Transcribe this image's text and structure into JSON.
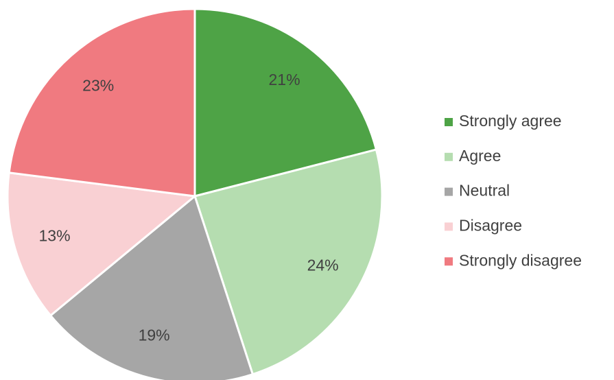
{
  "chart_data": {
    "type": "pie",
    "categories": [
      "Strongly agree",
      "Agree",
      "Neutral",
      "Disagree",
      "Strongly disagree"
    ],
    "values": [
      21,
      24,
      19,
      13,
      23
    ],
    "value_labels": [
      "21%",
      "24%",
      "19%",
      "13%",
      "23%"
    ],
    "colors": [
      "#4ea346",
      "#b5ddb0",
      "#a6a6a6",
      "#f9d0d3",
      "#f07a80"
    ],
    "legend": "right"
  }
}
